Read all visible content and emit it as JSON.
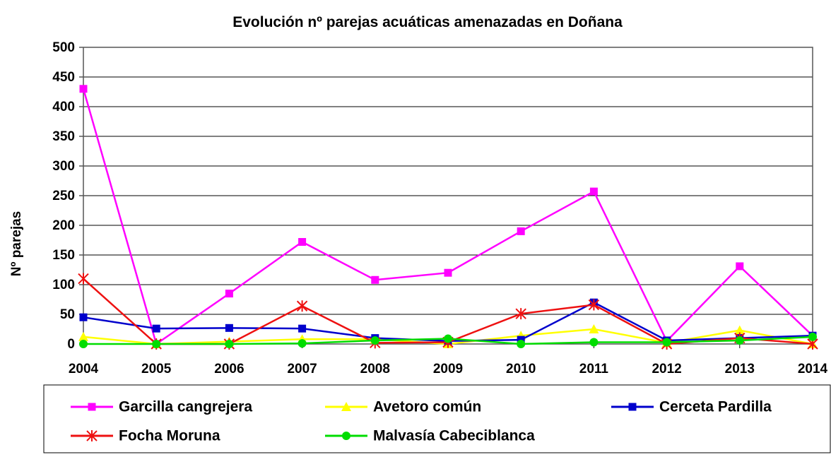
{
  "chart_data": {
    "type": "line",
    "title": "Evolución nº parejas acuáticas amenazadas en Doñana",
    "y_label": "Nº parejas",
    "categories": [
      "2004",
      "2005",
      "2006",
      "2007",
      "2008",
      "2009",
      "2010",
      "2011",
      "2012",
      "2013",
      "2014"
    ],
    "ylim": [
      0,
      500
    ],
    "yticks": [
      0,
      50,
      100,
      150,
      200,
      250,
      300,
      350,
      400,
      450,
      500
    ],
    "grid": true,
    "legend": "bottom",
    "series": [
      {
        "name": "Garcilla cangrejera",
        "color": "#ff00ff",
        "marker": "square",
        "values": [
          430,
          0,
          85,
          172,
          108,
          120,
          190,
          257,
          5,
          131,
          14
        ]
      },
      {
        "name": "Avetoro común",
        "color": "#ffff00",
        "marker": "triangle",
        "values": [
          12,
          0,
          4,
          8,
          8,
          0,
          14,
          25,
          2,
          23,
          0
        ]
      },
      {
        "name": "Cerceta Pardilla",
        "color": "#0000cc",
        "marker": "square",
        "values": [
          45,
          26,
          27,
          26,
          10,
          5,
          7,
          70,
          6,
          10,
          14
        ]
      },
      {
        "name": "Focha Moruna",
        "color": "#ee1111",
        "marker": "asterisk",
        "values": [
          110,
          0,
          0,
          64,
          2,
          3,
          51,
          66,
          0,
          10,
          0
        ]
      },
      {
        "name": "Malvasía Cabeciblanca",
        "color": "#00dd00",
        "marker": "circle",
        "values": [
          0,
          0,
          0,
          1,
          6,
          9,
          0,
          3,
          3,
          6,
          12
        ]
      }
    ]
  }
}
